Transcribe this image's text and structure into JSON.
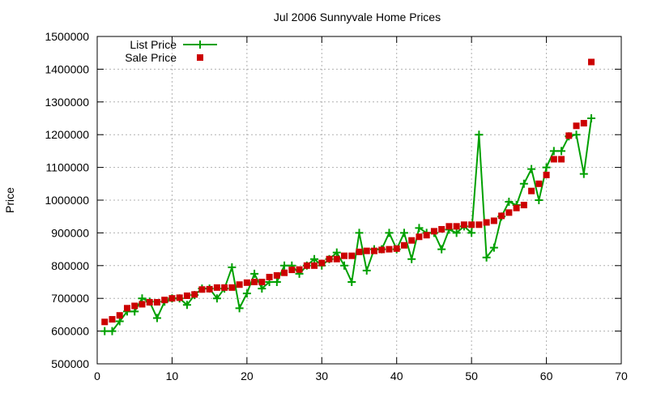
{
  "chart_data": {
    "type": "line",
    "title": "Jul 2006 Sunnyvale Home Prices",
    "xlabel": "",
    "ylabel": "Price",
    "xlim": [
      0,
      70
    ],
    "ylim": [
      500000,
      1500000
    ],
    "xticks": [
      "0",
      "10",
      "20",
      "30",
      "40",
      "50",
      "60",
      "70"
    ],
    "yticks": [
      "500000",
      "600000",
      "700000",
      "800000",
      "900000",
      "1000000",
      "1100000",
      "1200000",
      "1300000",
      "1400000",
      "1500000"
    ],
    "grid": true,
    "legend_position": "top-left",
    "x": [
      1,
      2,
      3,
      4,
      5,
      6,
      7,
      8,
      9,
      10,
      11,
      12,
      13,
      14,
      15,
      16,
      17,
      18,
      19,
      20,
      21,
      22,
      23,
      24,
      25,
      26,
      27,
      28,
      29,
      30,
      31,
      32,
      33,
      34,
      35,
      36,
      37,
      38,
      39,
      40,
      41,
      42,
      43,
      44,
      45,
      46,
      47,
      48,
      49,
      50,
      51,
      52,
      53,
      54,
      55,
      56,
      57,
      58,
      59,
      60,
      61,
      62,
      63,
      64,
      65,
      66
    ],
    "series": [
      {
        "name": "List Price",
        "style": "line-points",
        "color": "#00a000",
        "marker": "plus",
        "values": [
          600000,
          600000,
          630000,
          660000,
          660000,
          700000,
          690000,
          640000,
          690000,
          700000,
          700000,
          680000,
          710000,
          730000,
          730000,
          700000,
          730000,
          795000,
          670000,
          715000,
          775000,
          730000,
          750000,
          750000,
          800000,
          800000,
          775000,
          800000,
          820000,
          800000,
          820000,
          840000,
          800000,
          750000,
          900000,
          785000,
          850000,
          850000,
          900000,
          850000,
          900000,
          820000,
          915000,
          900000,
          900000,
          850000,
          910000,
          900000,
          920000,
          900000,
          1200000,
          825000,
          855000,
          950000,
          995000,
          985000,
          1050000,
          1095000,
          1000000,
          1100000,
          1150000,
          1150000,
          1195000,
          1200000,
          1080000,
          1250000
        ]
      },
      {
        "name": "Sale Price",
        "style": "points",
        "color": "#cc0000",
        "marker": "square",
        "values": [
          628000,
          636000,
          648000,
          670000,
          677000,
          682000,
          688000,
          688000,
          695000,
          700000,
          702000,
          708000,
          712000,
          727000,
          728000,
          733000,
          733000,
          733000,
          742000,
          748000,
          750000,
          750000,
          765000,
          770000,
          778000,
          787000,
          788000,
          800000,
          800000,
          808000,
          820000,
          820000,
          830000,
          830000,
          842000,
          845000,
          845000,
          848000,
          850000,
          852000,
          862000,
          877000,
          888000,
          893000,
          905000,
          911000,
          920000,
          920000,
          925000,
          925000,
          925000,
          932000,
          937000,
          952000,
          962000,
          976000,
          985000,
          1028000,
          1050000,
          1077000,
          1125000,
          1125000,
          1197000,
          1227000,
          1235000,
          1422000
        ]
      }
    ]
  }
}
